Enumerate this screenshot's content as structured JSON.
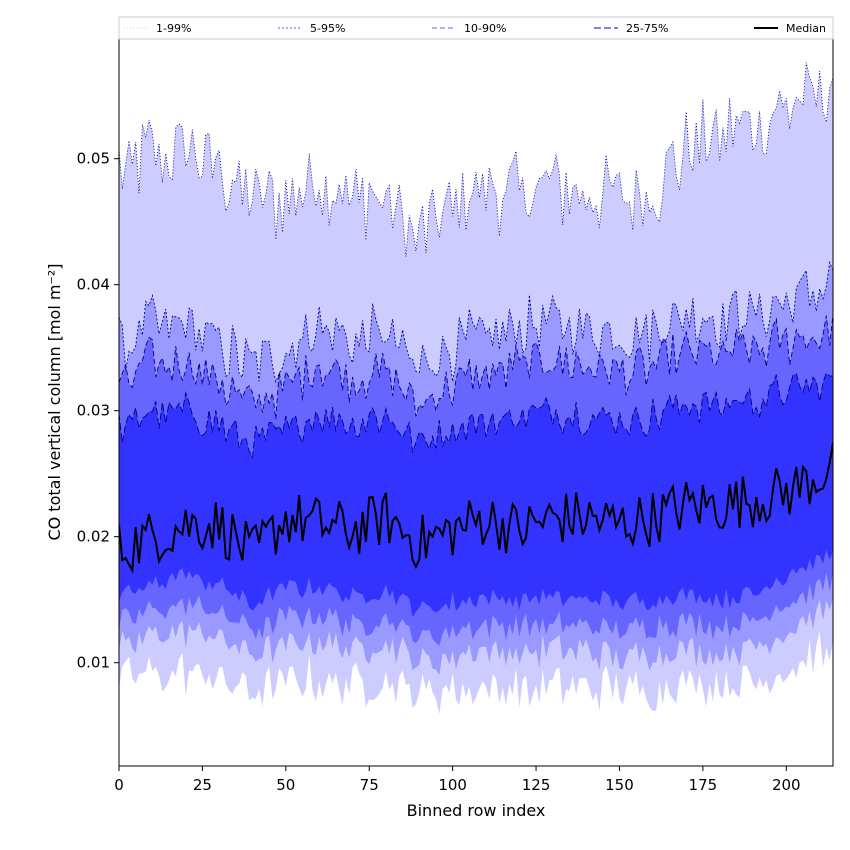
{
  "chart_data": {
    "type": "area",
    "xlabel": "Binned row index",
    "ylabel": "CO total vertical column [mol m⁻²]",
    "xlim": [
      0,
      214
    ],
    "ylim": [
      0.0018,
      0.0595
    ],
    "x_ticks": [
      "0",
      "25",
      "50",
      "75",
      "100",
      "125",
      "150",
      "175",
      "200"
    ],
    "y_ticks": [
      "0.01",
      "0.02",
      "0.03",
      "0.04",
      "0.05"
    ],
    "grid": false,
    "legend_position": "top",
    "colors": {
      "band_1_99": "#ccccff",
      "band_5_95": "#9999ff",
      "band_10_90": "#6666ff",
      "band_25_75": "#3333ff",
      "median": "#000000",
      "upper_lines": "#00008b"
    },
    "x_anchors": [
      0,
      10,
      20,
      30,
      40,
      50,
      60,
      70,
      80,
      90,
      100,
      110,
      120,
      130,
      140,
      150,
      160,
      170,
      180,
      190,
      200,
      214
    ],
    "series": [
      {
        "name": "1-99%",
        "lower": [
          0.0085,
          0.009,
          0.0092,
          0.0088,
          0.0075,
          0.0085,
          0.0088,
          0.0082,
          0.0085,
          0.0075,
          0.0078,
          0.008,
          0.0078,
          0.008,
          0.0082,
          0.0078,
          0.008,
          0.0085,
          0.0082,
          0.0085,
          0.0095,
          0.011
        ],
        "upper": [
          0.049,
          0.0505,
          0.051,
          0.0495,
          0.046,
          0.047,
          0.048,
          0.047,
          0.0465,
          0.044,
          0.046,
          0.048,
          0.047,
          0.048,
          0.047,
          0.047,
          0.0475,
          0.0505,
          0.052,
          0.053,
          0.054,
          0.056
        ]
      },
      {
        "name": "5-95%",
        "lower": [
          0.011,
          0.012,
          0.0125,
          0.012,
          0.0105,
          0.0115,
          0.0118,
          0.011,
          0.0115,
          0.01,
          0.0105,
          0.0108,
          0.0108,
          0.011,
          0.011,
          0.0105,
          0.0108,
          0.0112,
          0.0108,
          0.0112,
          0.0125,
          0.0145
        ],
        "upper": [
          0.035,
          0.037,
          0.037,
          0.0355,
          0.033,
          0.035,
          0.0365,
          0.0355,
          0.036,
          0.0335,
          0.035,
          0.036,
          0.0365,
          0.037,
          0.0365,
          0.036,
          0.0365,
          0.0375,
          0.0375,
          0.038,
          0.0385,
          0.0405
        ]
      },
      {
        "name": "10-90%",
        "lower": [
          0.013,
          0.014,
          0.0148,
          0.014,
          0.0125,
          0.0135,
          0.014,
          0.013,
          0.0135,
          0.012,
          0.0125,
          0.013,
          0.0128,
          0.013,
          0.013,
          0.0125,
          0.0128,
          0.0132,
          0.0128,
          0.0132,
          0.0148,
          0.0165
        ],
        "upper": [
          0.032,
          0.034,
          0.034,
          0.0325,
          0.03,
          0.032,
          0.0335,
          0.0325,
          0.033,
          0.0305,
          0.032,
          0.033,
          0.0335,
          0.034,
          0.0335,
          0.033,
          0.0335,
          0.0345,
          0.0345,
          0.035,
          0.0355,
          0.0365
        ]
      },
      {
        "name": "25-75%",
        "lower": [
          0.015,
          0.0162,
          0.017,
          0.0162,
          0.0145,
          0.0158,
          0.0162,
          0.0152,
          0.0158,
          0.0142,
          0.0148,
          0.0152,
          0.015,
          0.0152,
          0.0152,
          0.0148,
          0.015,
          0.0155,
          0.015,
          0.0155,
          0.017,
          0.0185
        ],
        "upper": [
          0.0285,
          0.03,
          0.03,
          0.029,
          0.027,
          0.0285,
          0.0295,
          0.029,
          0.0295,
          0.0275,
          0.0285,
          0.0292,
          0.0295,
          0.03,
          0.0295,
          0.0292,
          0.0295,
          0.0305,
          0.0305,
          0.031,
          0.0315,
          0.0325
        ]
      },
      {
        "name": "Median",
        "values": [
          0.019,
          0.02,
          0.021,
          0.021,
          0.0185,
          0.0215,
          0.021,
          0.0205,
          0.0215,
          0.0195,
          0.0205,
          0.0215,
          0.0205,
          0.0215,
          0.0215,
          0.021,
          0.0215,
          0.0225,
          0.0225,
          0.023,
          0.0235,
          0.0255
        ]
      }
    ]
  }
}
